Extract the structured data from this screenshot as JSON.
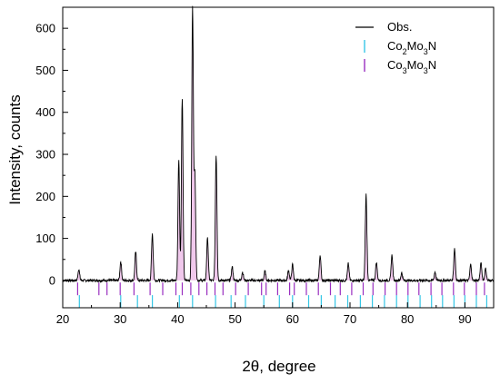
{
  "chart_data": {
    "type": "line",
    "xlabel": "2θ, degree",
    "ylabel": "Intensity, counts",
    "xlim": [
      20,
      95
    ],
    "ylim": [
      -65,
      650
    ],
    "xticks": [
      20,
      30,
      40,
      50,
      60,
      70,
      80,
      90
    ],
    "yticks": [
      0,
      100,
      200,
      300,
      400,
      500,
      600
    ],
    "grid": false,
    "legend_position": "top-right",
    "colors": {
      "observed": "#000000",
      "fill": "#f0c8ec",
      "co2mo3n_ticks": "#35c6e6",
      "co3mo3n_ticks": "#9a2fc0"
    },
    "baseline": 0,
    "peaks": [
      {
        "x": 22.8,
        "y": 27
      },
      {
        "x": 30.1,
        "y": 45
      },
      {
        "x": 32.7,
        "y": 68
      },
      {
        "x": 35.6,
        "y": 112
      },
      {
        "x": 40.2,
        "y": 287
      },
      {
        "x": 40.8,
        "y": 432
      },
      {
        "x": 42.6,
        "y": 648
      },
      {
        "x": 43.0,
        "y": 250
      },
      {
        "x": 45.2,
        "y": 100
      },
      {
        "x": 46.7,
        "y": 298
      },
      {
        "x": 49.5,
        "y": 32
      },
      {
        "x": 51.3,
        "y": 20
      },
      {
        "x": 55.2,
        "y": 22
      },
      {
        "x": 59.3,
        "y": 24
      },
      {
        "x": 60.0,
        "y": 38
      },
      {
        "x": 64.8,
        "y": 60
      },
      {
        "x": 69.7,
        "y": 40
      },
      {
        "x": 72.8,
        "y": 205
      },
      {
        "x": 74.6,
        "y": 43
      },
      {
        "x": 77.3,
        "y": 60
      },
      {
        "x": 79.0,
        "y": 18
      },
      {
        "x": 84.8,
        "y": 20
      },
      {
        "x": 88.2,
        "y": 76
      },
      {
        "x": 91.0,
        "y": 38
      },
      {
        "x": 92.8,
        "y": 42
      },
      {
        "x": 93.6,
        "y": 28
      }
    ],
    "series": [
      {
        "name": "Obs.",
        "marker_type": "line"
      },
      {
        "name": "Co2Mo3N",
        "marker_type": "tick",
        "tick_level": -50,
        "positions": [
          22.9,
          30.1,
          33.0,
          35.6,
          40.3,
          42.6,
          46.6,
          49.3,
          51.8,
          55.0,
          57.7,
          60.0,
          62.8,
          65.0,
          67.4,
          69.6,
          71.8,
          73.9,
          76.0,
          78.1,
          80.1,
          82.2,
          84.2,
          86.1,
          88.1,
          90.0,
          92.0,
          93.8
        ]
      },
      {
        "name": "Co3Mo3N",
        "marker_type": "tick",
        "tick_level": -20,
        "positions": [
          22.6,
          26.3,
          27.7,
          30.0,
          32.4,
          35.2,
          37.4,
          39.7,
          40.8,
          42.3,
          43.7,
          45.1,
          46.5,
          47.9,
          50.1,
          52.3,
          54.6,
          55.4,
          57.4,
          59.5,
          60.3,
          62.4,
          64.5,
          66.6,
          68.3,
          70.3,
          72.3,
          74.0,
          76.1,
          78.1,
          80.1,
          82.0,
          84.1,
          86.0,
          88.0,
          89.9,
          92.0,
          93.4
        ]
      }
    ],
    "legend": [
      {
        "label": "Obs.",
        "sub": []
      },
      {
        "label": "Co2Mo3N",
        "display": [
          [
            "Co",
            false
          ],
          [
            "2",
            true
          ],
          [
            "Mo",
            false
          ],
          [
            "3",
            true
          ],
          [
            "N",
            false
          ]
        ]
      },
      {
        "label": "Co3Mo3N",
        "display": [
          [
            "Co",
            false
          ],
          [
            "3",
            true
          ],
          [
            "Mo",
            false
          ],
          [
            "3",
            true
          ],
          [
            "N",
            false
          ]
        ]
      }
    ]
  }
}
